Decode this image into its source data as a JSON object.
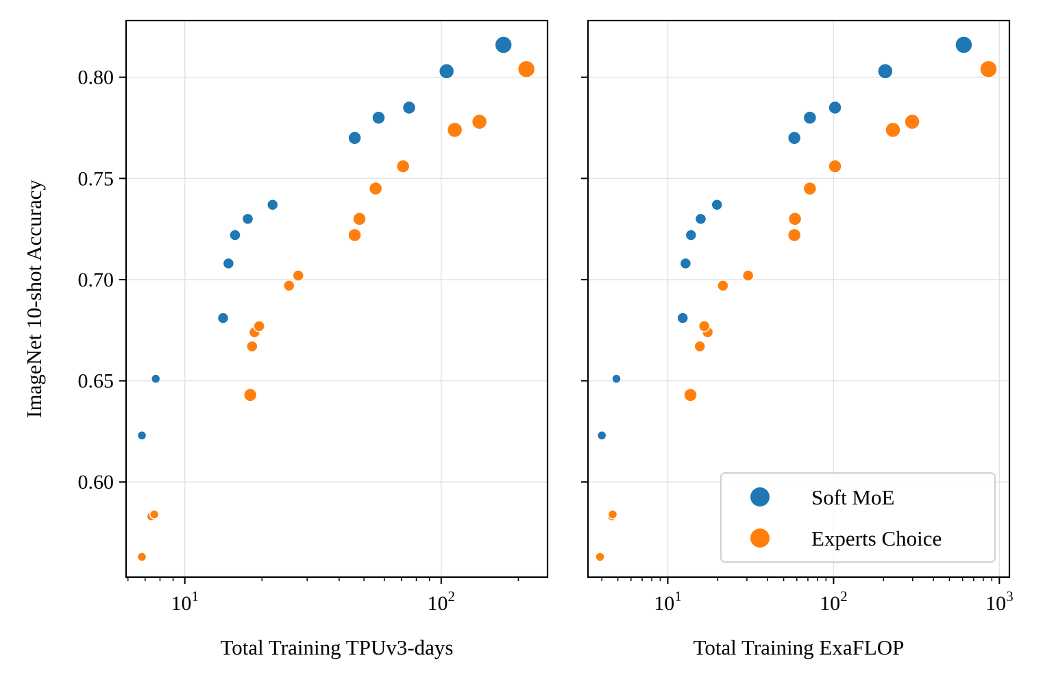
{
  "chart_data": [
    {
      "type": "scatter",
      "xscale": "log",
      "xlabel": "Total Training TPUv3-days",
      "ylabel": "ImageNet 10-shot Accuracy",
      "xlim": [
        5.9,
        260
      ],
      "ylim": [
        0.553,
        0.828
      ],
      "yticks": [
        "0.60",
        "0.65",
        "0.70",
        "0.75",
        "0.80"
      ],
      "ytick_values": [
        0.6,
        0.65,
        0.7,
        0.75,
        0.8
      ],
      "xticks": [
        {
          "base": "10",
          "exp": "1",
          "value": 10
        },
        {
          "base": "10",
          "exp": "2",
          "value": 100
        }
      ],
      "grid": true,
      "series": [
        {
          "name": "Soft MoE",
          "color": "#1f77b4",
          "points": [
            {
              "x": 6.8,
              "y": 0.623,
              "s": 0
            },
            {
              "x": 7.7,
              "y": 0.651,
              "s": 0
            },
            {
              "x": 14.1,
              "y": 0.681,
              "s": 1
            },
            {
              "x": 14.8,
              "y": 0.708,
              "s": 1
            },
            {
              "x": 15.7,
              "y": 0.722,
              "s": 1
            },
            {
              "x": 17.6,
              "y": 0.73,
              "s": 1
            },
            {
              "x": 22.0,
              "y": 0.737,
              "s": 1
            },
            {
              "x": 46.0,
              "y": 0.77,
              "s": 2
            },
            {
              "x": 57.0,
              "y": 0.78,
              "s": 2
            },
            {
              "x": 75.0,
              "y": 0.785,
              "s": 2
            },
            {
              "x": 105.0,
              "y": 0.803,
              "s": 3
            },
            {
              "x": 175.0,
              "y": 0.816,
              "s": 4
            }
          ]
        },
        {
          "name": "Experts Choice",
          "color": "#ff7f0e",
          "points": [
            {
              "x": 6.8,
              "y": 0.563,
              "s": 0
            },
            {
              "x": 7.4,
              "y": 0.583,
              "s": 0
            },
            {
              "x": 7.6,
              "y": 0.584,
              "s": 0
            },
            {
              "x": 18.0,
              "y": 0.643,
              "s": 2
            },
            {
              "x": 18.3,
              "y": 0.667,
              "s": 1
            },
            {
              "x": 18.7,
              "y": 0.674,
              "s": 1
            },
            {
              "x": 19.5,
              "y": 0.677,
              "s": 1
            },
            {
              "x": 25.5,
              "y": 0.697,
              "s": 1
            },
            {
              "x": 27.7,
              "y": 0.702,
              "s": 1
            },
            {
              "x": 46.0,
              "y": 0.722,
              "s": 2
            },
            {
              "x": 48.0,
              "y": 0.73,
              "s": 2
            },
            {
              "x": 55.5,
              "y": 0.745,
              "s": 2
            },
            {
              "x": 71.0,
              "y": 0.756,
              "s": 2
            },
            {
              "x": 113.0,
              "y": 0.774,
              "s": 3
            },
            {
              "x": 141.0,
              "y": 0.778,
              "s": 3
            },
            {
              "x": 215.0,
              "y": 0.804,
              "s": 4
            }
          ]
        }
      ]
    },
    {
      "type": "scatter",
      "xscale": "log",
      "xlabel": "Total Training ExaFLOP",
      "ylabel": "",
      "xlim": [
        3.3,
        1150
      ],
      "ylim": [
        0.553,
        0.828
      ],
      "yticks": [],
      "ytick_values": [
        0.6,
        0.65,
        0.7,
        0.75,
        0.8
      ],
      "xticks": [
        {
          "base": "10",
          "exp": "1",
          "value": 10
        },
        {
          "base": "10",
          "exp": "2",
          "value": 100
        },
        {
          "base": "10",
          "exp": "3",
          "value": 1000
        }
      ],
      "grid": true,
      "legend": {
        "placement": "lower-right",
        "entries": [
          {
            "label": "Soft MoE",
            "color": "#1f77b4"
          },
          {
            "label": "Experts Choice",
            "color": "#ff7f0e"
          }
        ]
      },
      "series": [
        {
          "name": "Soft MoE",
          "color": "#1f77b4",
          "points": [
            {
              "x": 4.0,
              "y": 0.623,
              "s": 0
            },
            {
              "x": 4.9,
              "y": 0.651,
              "s": 0
            },
            {
              "x": 12.3,
              "y": 0.681,
              "s": 1
            },
            {
              "x": 12.8,
              "y": 0.708,
              "s": 1
            },
            {
              "x": 13.8,
              "y": 0.722,
              "s": 1
            },
            {
              "x": 15.8,
              "y": 0.73,
              "s": 1
            },
            {
              "x": 19.8,
              "y": 0.737,
              "s": 1
            },
            {
              "x": 58.0,
              "y": 0.77,
              "s": 2
            },
            {
              "x": 72.0,
              "y": 0.78,
              "s": 2
            },
            {
              "x": 102.0,
              "y": 0.785,
              "s": 2
            },
            {
              "x": 205.0,
              "y": 0.803,
              "s": 3
            },
            {
              "x": 610.0,
              "y": 0.816,
              "s": 4
            }
          ]
        },
        {
          "name": "Experts Choice",
          "color": "#ff7f0e",
          "points": [
            {
              "x": 3.9,
              "y": 0.563,
              "s": 0
            },
            {
              "x": 4.6,
              "y": 0.583,
              "s": 0
            },
            {
              "x": 4.65,
              "y": 0.584,
              "s": 0
            },
            {
              "x": 13.7,
              "y": 0.643,
              "s": 2
            },
            {
              "x": 15.6,
              "y": 0.667,
              "s": 1
            },
            {
              "x": 17.4,
              "y": 0.674,
              "s": 1
            },
            {
              "x": 16.6,
              "y": 0.677,
              "s": 1
            },
            {
              "x": 21.5,
              "y": 0.697,
              "s": 1
            },
            {
              "x": 30.5,
              "y": 0.702,
              "s": 1
            },
            {
              "x": 58.0,
              "y": 0.722,
              "s": 2
            },
            {
              "x": 58.5,
              "y": 0.73,
              "s": 2
            },
            {
              "x": 72.0,
              "y": 0.745,
              "s": 2
            },
            {
              "x": 102.0,
              "y": 0.756,
              "s": 2
            },
            {
              "x": 228.0,
              "y": 0.774,
              "s": 3
            },
            {
              "x": 298.0,
              "y": 0.778,
              "s": 3
            },
            {
              "x": 860.0,
              "y": 0.804,
              "s": 4
            }
          ]
        }
      ]
    }
  ]
}
